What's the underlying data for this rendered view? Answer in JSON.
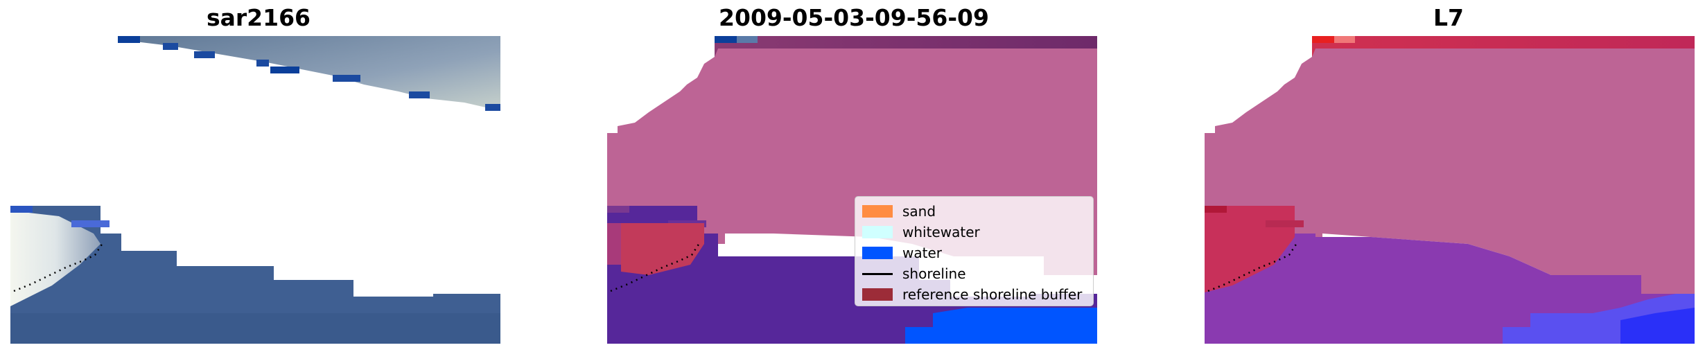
{
  "panels": [
    {
      "title": "sar2166",
      "variant": "rgb"
    },
    {
      "title": "2009-05-03-09-56-09",
      "variant": "classified"
    },
    {
      "title": "L7",
      "variant": "mndwi"
    }
  ],
  "legend": {
    "items": [
      {
        "label": "sand",
        "color": "#ff8c42",
        "kind": "patch"
      },
      {
        "label": "whitewater",
        "color": "#d0ffff",
        "kind": "patch"
      },
      {
        "label": "water",
        "color": "#0055ff",
        "kind": "patch"
      },
      {
        "label": "shoreline",
        "color": "#000000",
        "kind": "line"
      },
      {
        "label": "reference shoreline buffer",
        "color": "#9c2c38",
        "kind": "patch"
      }
    ]
  },
  "colors": {
    "masked_overlay": "#bd6495",
    "deep_water": "#56279a",
    "bright_water": "#0055ff",
    "land_rgb": "#7a8ea8",
    "sea_rgb": "#3f5f92",
    "red_band": "#c02858"
  }
}
